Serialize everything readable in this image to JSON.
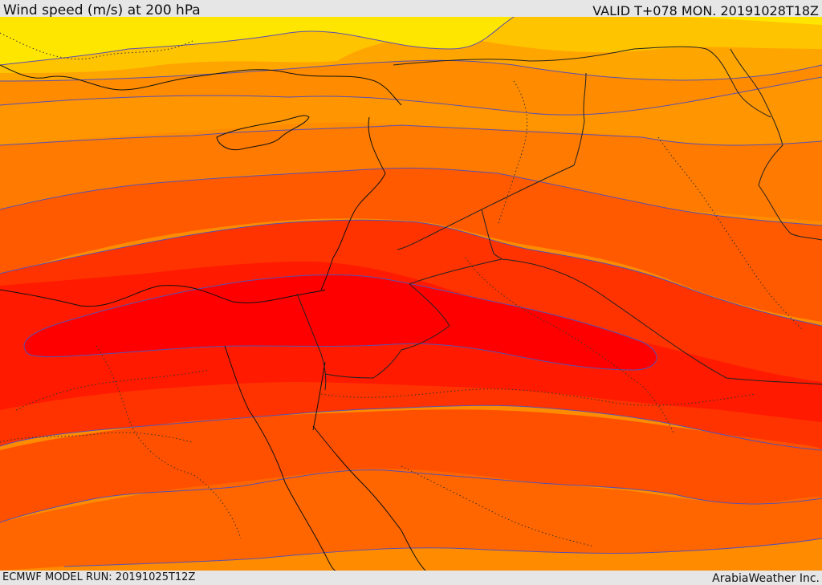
{
  "header": {
    "title": "Wind speed (m/s) at 200 hPa",
    "valid_time": "VALID T+078 MON. 20191028T18Z"
  },
  "footer": {
    "model_run": "ECMWF MODEL RUN: 20191025T12Z",
    "credit": "ArabiaWeather Inc."
  },
  "map": {
    "variable": "wind speed",
    "level": "200 hPa",
    "units": "m/s",
    "colors": {
      "band_1": "#ffe600",
      "band_2": "#ffc400",
      "band_3": "#ffa500",
      "band_4": "#ff8c00",
      "band_5": "#ff6a00",
      "band_6": "#ff4b00",
      "band_7": "#ff2a00",
      "band_8": "#ff1500",
      "core": "#ff0000",
      "contour": "#5a4fb0",
      "coastline": "#111111",
      "borders": "#222222"
    }
  }
}
